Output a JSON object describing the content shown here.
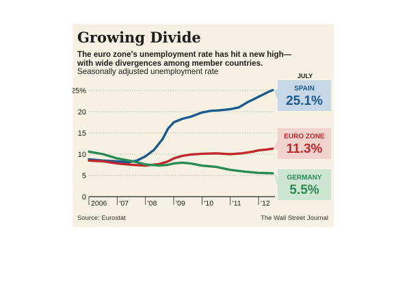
{
  "header": {
    "title": "Growing Divide",
    "subtitle_line1": "The euro zone's unemployment rate has hit a new high—",
    "subtitle_line2": "with wide divergences among member countries.",
    "note": "Seasonally adjusted unemployment rate"
  },
  "footer": {
    "source": "Source: Eurostat",
    "credit": "The Wall Street Journal"
  },
  "colors": {
    "panel_bg": "#f6f1e2",
    "spain": "#1c5a8d",
    "euro_zone": "#c0282d",
    "germany": "#2a8a56",
    "spain_box": "#c6d7e7",
    "euro_zone_box": "#f1d3cd",
    "germany_box": "#cfe5d3"
  },
  "chart_data": {
    "type": "line",
    "title": "Growing Divide",
    "ylim": [
      0,
      25
    ],
    "yticks": [
      0,
      5,
      10,
      15,
      20,
      25
    ],
    "ytick_labels": [
      "0",
      "5",
      "10",
      "15",
      "20",
      "25%"
    ],
    "xlim": [
      2006,
      2012.58
    ],
    "xticks": [
      2006,
      2007,
      2008,
      2009,
      2010,
      2011,
      2012
    ],
    "xtick_labels": [
      "2006",
      "'07",
      "'08",
      "'09",
      "'10",
      "'11",
      "'12"
    ],
    "end_label_header": "JULY",
    "series": [
      {
        "name": "SPAIN",
        "end_label": "25.1%",
        "color": "#1c5a8d",
        "points": [
          [
            2006.0,
            8.8
          ],
          [
            2006.5,
            8.5
          ],
          [
            2007.0,
            8.3
          ],
          [
            2007.4,
            8.1
          ],
          [
            2007.7,
            8.5
          ],
          [
            2008.0,
            9.5
          ],
          [
            2008.3,
            11.0
          ],
          [
            2008.6,
            13.5
          ],
          [
            2008.8,
            16.0
          ],
          [
            2009.0,
            17.5
          ],
          [
            2009.3,
            18.3
          ],
          [
            2009.6,
            18.8
          ],
          [
            2010.0,
            19.8
          ],
          [
            2010.3,
            20.2
          ],
          [
            2010.6,
            20.3
          ],
          [
            2011.0,
            20.6
          ],
          [
            2011.3,
            21.0
          ],
          [
            2011.6,
            22.2
          ],
          [
            2012.0,
            23.5
          ],
          [
            2012.3,
            24.5
          ],
          [
            2012.5,
            25.1
          ]
        ]
      },
      {
        "name": "EURO ZONE",
        "end_label": "11.3%",
        "color": "#c0282d",
        "points": [
          [
            2006.0,
            8.5
          ],
          [
            2006.5,
            8.3
          ],
          [
            2007.0,
            7.8
          ],
          [
            2007.5,
            7.5
          ],
          [
            2008.0,
            7.3
          ],
          [
            2008.5,
            7.7
          ],
          [
            2008.8,
            8.3
          ],
          [
            2009.0,
            9.0
          ],
          [
            2009.3,
            9.6
          ],
          [
            2009.6,
            9.9
          ],
          [
            2010.0,
            10.1
          ],
          [
            2010.5,
            10.2
          ],
          [
            2011.0,
            10.0
          ],
          [
            2011.4,
            10.2
          ],
          [
            2011.8,
            10.6
          ],
          [
            2012.0,
            10.9
          ],
          [
            2012.3,
            11.1
          ],
          [
            2012.5,
            11.3
          ]
        ]
      },
      {
        "name": "GERMANY",
        "end_label": "5.5%",
        "color": "#2a8a56",
        "points": [
          [
            2006.0,
            10.6
          ],
          [
            2006.5,
            10.0
          ],
          [
            2007.0,
            9.0
          ],
          [
            2007.5,
            8.4
          ],
          [
            2008.0,
            7.6
          ],
          [
            2008.5,
            7.3
          ],
          [
            2008.8,
            7.5
          ],
          [
            2009.0,
            7.8
          ],
          [
            2009.3,
            8.0
          ],
          [
            2009.6,
            7.8
          ],
          [
            2010.0,
            7.3
          ],
          [
            2010.5,
            7.0
          ],
          [
            2011.0,
            6.3
          ],
          [
            2011.5,
            5.9
          ],
          [
            2012.0,
            5.6
          ],
          [
            2012.5,
            5.5
          ]
        ]
      }
    ]
  }
}
